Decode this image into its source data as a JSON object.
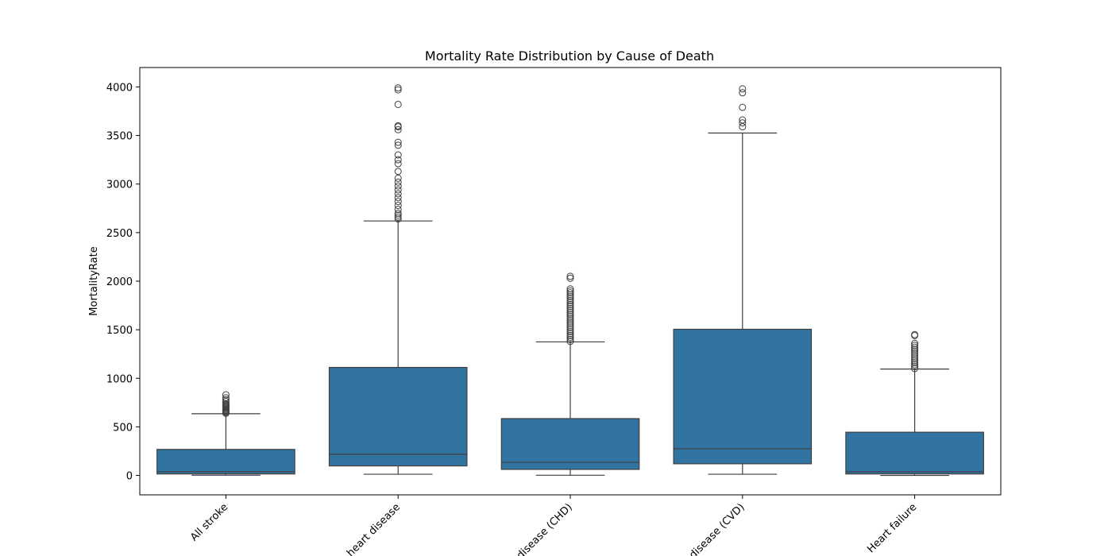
{
  "chart_data": {
    "type": "box",
    "title": "Mortality Rate Distribution by Cause of Death",
    "xlabel": "",
    "ylabel": "MortalityRate",
    "ylim": [
      -200,
      4200
    ],
    "yticks": [
      0,
      500,
      1000,
      1500,
      2000,
      2500,
      3000,
      3500,
      4000
    ],
    "tick_label_rotation_deg": -45,
    "categories": [
      "All stroke",
      "heart disease",
      "disease (CHD)",
      "disease (CVD)",
      "Heart failure"
    ],
    "box_color": "#3274a1",
    "line_color": "#3f3f3f",
    "grid": false,
    "boxes": [
      {
        "category": "All stroke",
        "whisker_low": 2,
        "q1": 15,
        "median": 38,
        "q3": 268,
        "whisker_high": 635,
        "outliers": [
          640,
          650,
          660,
          670,
          680,
          690,
          700,
          710,
          720,
          730,
          740,
          760,
          780,
          800,
          830
        ]
      },
      {
        "category": "heart disease",
        "whisker_low": 12,
        "q1": 98,
        "median": 218,
        "q3": 1112,
        "whisker_high": 2620,
        "outliers": [
          2640,
          2660,
          2680,
          2700,
          2740,
          2780,
          2820,
          2860,
          2900,
          2940,
          2980,
          3020,
          3060,
          3130,
          3210,
          3250,
          3300,
          3400,
          3430,
          3560,
          3590,
          3600,
          3820,
          3970,
          3990
        ]
      },
      {
        "category": "disease (CHD)",
        "whisker_low": 2,
        "q1": 62,
        "median": 135,
        "q3": 585,
        "whisker_high": 1375,
        "outliers": [
          1380,
          1400,
          1420,
          1440,
          1460,
          1480,
          1500,
          1520,
          1540,
          1560,
          1580,
          1600,
          1620,
          1640,
          1660,
          1680,
          1700,
          1720,
          1740,
          1760,
          1780,
          1800,
          1820,
          1840,
          1860,
          1880,
          1900,
          1920,
          2030,
          2050
        ]
      },
      {
        "category": "disease (CVD)",
        "whisker_low": 12,
        "q1": 120,
        "median": 275,
        "q3": 1505,
        "whisker_high": 3525,
        "outliers": [
          3590,
          3630,
          3660,
          3790,
          3940,
          3980
        ]
      },
      {
        "category": "Heart failure",
        "whisker_low": 0,
        "q1": 15,
        "median": 37,
        "q3": 445,
        "whisker_high": 1095,
        "outliers": [
          1100,
          1120,
          1140,
          1160,
          1180,
          1200,
          1220,
          1240,
          1260,
          1280,
          1300,
          1320,
          1340,
          1360,
          1440,
          1450
        ]
      }
    ]
  }
}
